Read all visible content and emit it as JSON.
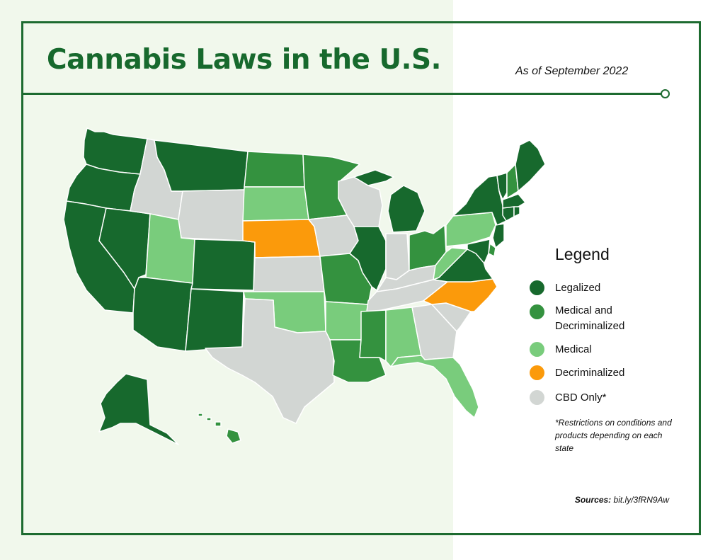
{
  "title": "Cannabis Laws in the U.S.",
  "subtitle": "As of September 2022",
  "colors": {
    "legalized": "#17692d",
    "medical_decriminalized": "#34923f",
    "medical": "#79cc7c",
    "decriminalized": "#fb9a0b",
    "cbd_only": "#d2d6d3",
    "frame": "#1d6b30"
  },
  "legend": {
    "title": "Legend",
    "items": [
      {
        "key": "legalized",
        "label": "Legalized"
      },
      {
        "key": "medical_decriminalized",
        "label": "Medical and Decriminalized"
      },
      {
        "key": "medical",
        "label": "Medical"
      },
      {
        "key": "decriminalized",
        "label": "Decriminalized"
      },
      {
        "key": "cbd_only",
        "label": "CBD Only*"
      }
    ]
  },
  "note": "*Restrictions on conditions and products depending on each state",
  "sources": {
    "label": "Sources:",
    "value": "bit.ly/3fRN9Aw"
  },
  "states": [
    {
      "id": "WA",
      "status": "legalized"
    },
    {
      "id": "OR",
      "status": "legalized"
    },
    {
      "id": "CA",
      "status": "legalized"
    },
    {
      "id": "NV",
      "status": "legalized"
    },
    {
      "id": "ID",
      "status": "cbd_only"
    },
    {
      "id": "MT",
      "status": "legalized"
    },
    {
      "id": "WY",
      "status": "cbd_only"
    },
    {
      "id": "UT",
      "status": "medical"
    },
    {
      "id": "CO",
      "status": "legalized"
    },
    {
      "id": "AZ",
      "status": "legalized"
    },
    {
      "id": "NM",
      "status": "legalized"
    },
    {
      "id": "ND",
      "status": "medical_decriminalized"
    },
    {
      "id": "SD",
      "status": "medical"
    },
    {
      "id": "NE",
      "status": "decriminalized"
    },
    {
      "id": "KS",
      "status": "cbd_only"
    },
    {
      "id": "OK",
      "status": "medical"
    },
    {
      "id": "TX",
      "status": "cbd_only"
    },
    {
      "id": "MN",
      "status": "medical_decriminalized"
    },
    {
      "id": "IA",
      "status": "cbd_only"
    },
    {
      "id": "MO",
      "status": "medical_decriminalized"
    },
    {
      "id": "AR",
      "status": "medical"
    },
    {
      "id": "LA",
      "status": "medical_decriminalized"
    },
    {
      "id": "WI",
      "status": "cbd_only"
    },
    {
      "id": "IL",
      "status": "legalized"
    },
    {
      "id": "MI",
      "status": "legalized"
    },
    {
      "id": "IN",
      "status": "cbd_only"
    },
    {
      "id": "OH",
      "status": "medical_decriminalized"
    },
    {
      "id": "KY",
      "status": "cbd_only"
    },
    {
      "id": "TN",
      "status": "cbd_only"
    },
    {
      "id": "MS",
      "status": "medical_decriminalized"
    },
    {
      "id": "AL",
      "status": "medical"
    },
    {
      "id": "GA",
      "status": "cbd_only"
    },
    {
      "id": "FL",
      "status": "medical"
    },
    {
      "id": "SC",
      "status": "cbd_only"
    },
    {
      "id": "NC",
      "status": "decriminalized"
    },
    {
      "id": "VA",
      "status": "legalized"
    },
    {
      "id": "WV",
      "status": "medical"
    },
    {
      "id": "PA",
      "status": "medical"
    },
    {
      "id": "NY",
      "status": "legalized"
    },
    {
      "id": "VT",
      "status": "legalized"
    },
    {
      "id": "NH",
      "status": "medical_decriminalized"
    },
    {
      "id": "ME",
      "status": "legalized"
    },
    {
      "id": "MA",
      "status": "legalized"
    },
    {
      "id": "CT",
      "status": "legalized"
    },
    {
      "id": "RI",
      "status": "legalized"
    },
    {
      "id": "NJ",
      "status": "legalized"
    },
    {
      "id": "DE",
      "status": "medical_decriminalized"
    },
    {
      "id": "MD",
      "status": "legalized"
    },
    {
      "id": "AK",
      "status": "legalized"
    },
    {
      "id": "HI",
      "status": "medical_decriminalized"
    }
  ]
}
